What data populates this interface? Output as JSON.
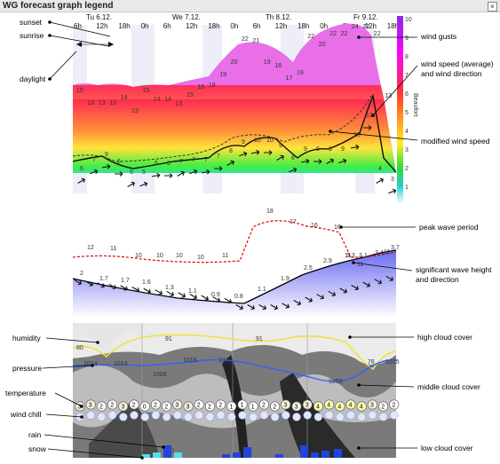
{
  "window": {
    "title": "WG forecast graph legend",
    "close_icon": "close-icon"
  },
  "days": {
    "labels": [
      "Tu 6.12.",
      "We 7.12.",
      "Th 8.12.",
      "Fr 9.12."
    ],
    "hours": [
      "6h",
      "12h",
      "18h",
      "0h",
      "6h",
      "12h",
      "18h",
      "0h",
      "6h",
      "12h",
      "18h",
      "0h",
      "6h",
      "12h",
      "18h"
    ]
  },
  "beaufort": {
    "label": "Beaufort",
    "scale": [
      "10",
      "9",
      "8",
      "7",
      "6",
      "5",
      "4",
      "3",
      "2",
      "1"
    ]
  },
  "annotations": {
    "sunset": "sunset",
    "sunrise": "sunrise",
    "daylight": "daylight",
    "wind_gusts": "wind gusts",
    "wind_speed": "wind speed (average)\nand wind direction",
    "modified_wind": "modified wind speed",
    "peak_wave": "peak wave period",
    "sig_wave": "significant wave height\nand direction",
    "humidity": "humidity",
    "pressure": "pressure",
    "temperature": "temperature",
    "wind_chill": "wind chill",
    "rain": "rain",
    "snow": "snow",
    "high_cloud": "high cloud cover",
    "middle_cloud": "middle cloud cover",
    "low_cloud": "low cloud cover"
  },
  "gusts": [
    "15",
    "13",
    "13",
    "13",
    "14",
    "13",
    "15",
    "14",
    "14",
    "13",
    "15",
    "16",
    "18",
    "19",
    "20",
    "22",
    "21",
    "19",
    "18",
    "17",
    "19",
    "22",
    "20",
    "22",
    "22",
    "24",
    "27",
    "22",
    "13"
  ],
  "wind_avg": [
    "6",
    "7",
    "9",
    "6",
    "5",
    "5",
    "6",
    "6",
    "7",
    "7",
    "7",
    "7",
    "8",
    "9",
    "10",
    "10",
    "9",
    "8",
    "9",
    "9",
    "9",
    "9",
    "10",
    "12",
    "4",
    "3"
  ],
  "wave_period": [
    "12",
    "11",
    "10",
    "10",
    "10",
    "10",
    "11",
    "18",
    "17",
    "16",
    "16",
    "11",
    "11",
    "11"
  ],
  "wave_height": [
    "2",
    "1.7",
    "1.7",
    "1.6",
    "1.3",
    "1.1",
    "0.9",
    "0.8",
    "1.1",
    "1.9",
    "2.5",
    "2.9",
    "3.3",
    "3.1",
    "3.4",
    "3.7"
  ],
  "humidity_vals": [
    "80",
    "91",
    "91",
    "76"
  ],
  "pressure_vals": [
    "1014",
    "1014",
    "1006",
    "1016",
    "1016",
    "1003",
    "1015"
  ],
  "temperature": [
    "3",
    "3",
    "2",
    "2",
    "3",
    "2",
    "0",
    "2",
    "2",
    "3",
    "3",
    "2",
    "2",
    "2",
    "1",
    "1",
    "1",
    "2",
    "2",
    "3",
    "3",
    "3",
    "4",
    "4",
    "4",
    "4",
    "4",
    "3",
    "2",
    "2"
  ],
  "rain_vals": [
    "1.0",
    "1.6",
    "1.6"
  ],
  "colors": {
    "gusts": "#e86fe8",
    "accent": "#000000",
    "wave_period": "#e00000",
    "pressure": "#3060ff",
    "humidity": "#f0e040"
  }
}
